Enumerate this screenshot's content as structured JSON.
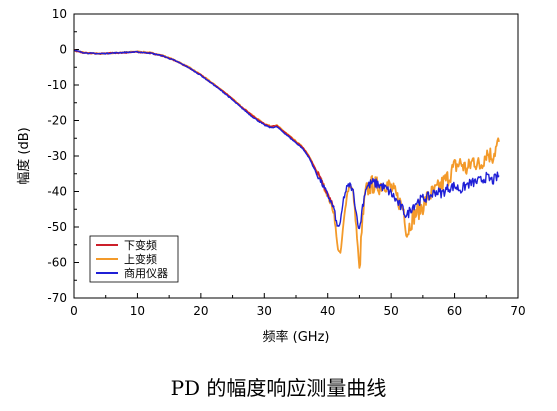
{
  "caption": "PD 的幅度响应测量曲线",
  "chart_data": {
    "type": "line",
    "xlabel": "频率 (GHz)",
    "ylabel": "幅度 (dB)",
    "xlim": [
      0,
      70
    ],
    "ylim": [
      -70,
      10
    ],
    "xticks": [
      "0",
      "10",
      "20",
      "30",
      "40",
      "50",
      "60",
      "70"
    ],
    "yticks": [
      "10",
      "0",
      "-10",
      "-20",
      "-30",
      "-40",
      "-50",
      "-60",
      "-70"
    ],
    "legend_position": "bottom-left",
    "series": [
      {
        "name": "下变频",
        "color": "#cc1f2a",
        "width": 1.6,
        "x": [
          0,
          1,
          2,
          3,
          4,
          6,
          8,
          10,
          12,
          14,
          16,
          18,
          20,
          22,
          24,
          26,
          28,
          30,
          31,
          32,
          33,
          34,
          35,
          36,
          37,
          38,
          39,
          40,
          41
        ],
        "y": [
          -0.3,
          -0.8,
          -1.0,
          -1.1,
          -1.2,
          -1.0,
          -0.9,
          -0.7,
          -1.0,
          -1.8,
          -3.2,
          -5.0,
          -7.2,
          -9.8,
          -12.5,
          -15.6,
          -18.5,
          -21.0,
          -21.7,
          -21.5,
          -23.0,
          -24.5,
          -26.0,
          -27.5,
          -30.0,
          -33.5,
          -37.0,
          -40.5,
          -44.0
        ]
      },
      {
        "name": "上变频",
        "color": "#f39a2a",
        "width": 1.8,
        "x": [
          0,
          2,
          4,
          6,
          8,
          10,
          12,
          14,
          16,
          18,
          20,
          22,
          24,
          26,
          28,
          30,
          31,
          32,
          33,
          34,
          35,
          36,
          37,
          38,
          39,
          40,
          41,
          41.5,
          42,
          42.5,
          43,
          43.5,
          44,
          44.5,
          45,
          45.5,
          46,
          47,
          48,
          49,
          50,
          51,
          52,
          52.5,
          53,
          53.5,
          54,
          55,
          56,
          57,
          58,
          59,
          60,
          61,
          62,
          63,
          64,
          65,
          66,
          67
        ],
        "y": [
          -0.3,
          -1.0,
          -1.2,
          -1.0,
          -0.8,
          -0.6,
          -0.9,
          -1.7,
          -3.1,
          -4.9,
          -7.1,
          -9.7,
          -12.4,
          -15.5,
          -18.4,
          -20.9,
          -21.6,
          -21.4,
          -22.9,
          -24.4,
          -25.9,
          -27.4,
          -29.9,
          -33.4,
          -37.0,
          -41.0,
          -46.0,
          -55.0,
          -58.0,
          -49.0,
          -41.0,
          -38.0,
          -40.0,
          -50.0,
          -62.0,
          -48.0,
          -40.0,
          -38.0,
          -38.5,
          -37.5,
          -39.0,
          -42.0,
          -45.0,
          -52.0,
          -49.0,
          -47.0,
          -46.0,
          -44.0,
          -41.0,
          -40.0,
          -38.0,
          -36.0,
          -33.0,
          -32.0,
          -34.0,
          -31.0,
          -33.0,
          -29.0,
          -30.0,
          -26.0
        ]
      },
      {
        "name": "商用仪器",
        "color": "#1f1fd6",
        "width": 1.4,
        "x": [
          0,
          2,
          4,
          6,
          8,
          10,
          12,
          14,
          16,
          18,
          20,
          22,
          24,
          26,
          28,
          30,
          31,
          32,
          33,
          34,
          35,
          36,
          37,
          38,
          39,
          40,
          41,
          41.5,
          42,
          42.5,
          43,
          43.5,
          44,
          44.5,
          45,
          45.5,
          46,
          47,
          48,
          49,
          50,
          51,
          52,
          52.5,
          53,
          53.5,
          54,
          55,
          56,
          57,
          58,
          59,
          60,
          61,
          62,
          63,
          64,
          65,
          66,
          67
        ],
        "y": [
          -0.3,
          -1.0,
          -1.2,
          -1.0,
          -0.8,
          -0.7,
          -1.0,
          -1.8,
          -3.2,
          -5.0,
          -7.3,
          -9.9,
          -12.7,
          -15.8,
          -18.8,
          -21.3,
          -22.0,
          -21.8,
          -23.3,
          -24.8,
          -26.3,
          -27.8,
          -30.3,
          -34.0,
          -37.5,
          -41.0,
          -45.0,
          -50.0,
          -49.0,
          -42.0,
          -39.0,
          -38.0,
          -40.0,
          -46.0,
          -51.0,
          -44.0,
          -39.0,
          -37.5,
          -38.0,
          -39.0,
          -40.5,
          -43.0,
          -45.5,
          -47.0,
          -45.0,
          -44.0,
          -43.0,
          -42.0,
          -41.5,
          -40.0,
          -40.5,
          -39.0,
          -38.5,
          -39.5,
          -38.0,
          -37.5,
          -37.0,
          -36.0,
          -37.0,
          -35.5
        ]
      }
    ]
  }
}
